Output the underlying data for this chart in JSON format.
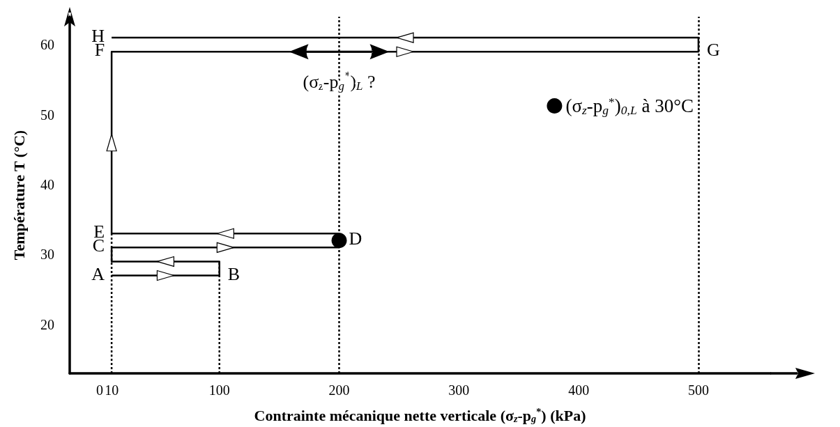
{
  "chart_data": {
    "type": "line",
    "xlabel": "Contrainte mécanique nette verticale (σ$_{z}$-p$_{g}$$^{*}$) (kPa)",
    "ylabel": "Température T (°C)",
    "xlim": [
      -25,
      560
    ],
    "xticks": [
      0,
      10,
      100,
      200,
      300,
      400,
      500
    ],
    "ylim": [
      13,
      64
    ],
    "yticks": [
      20,
      30,
      40,
      50,
      60
    ],
    "grid": false,
    "legend": "top right",
    "series": [
      {
        "color": "#000000",
        "line_style": "solid",
        "marker": "none",
        "x": [
          10,
          100,
          100,
          10,
          10,
          200,
          200,
          10,
          10,
          500,
          500,
          10
        ],
        "values": [
          27,
          27,
          29,
          29,
          31,
          31,
          33,
          33,
          59,
          59,
          61,
          61
        ]
      },
      {
        "color": "#000000",
        "line_style": "dotted",
        "marker": "none",
        "x": [
          10,
          10
        ],
        "values": [
          13,
          33
        ]
      },
      {
        "color": "#000000",
        "line_style": "dotted",
        "marker": "none",
        "x": [
          100,
          100
        ],
        "values": [
          13,
          29
        ]
      },
      {
        "type": "scatter",
        "name": "(σ$_{z}$-p$_{g}$$^{*}$)$_{0,L}$ à 30°C",
        "color": "#000000",
        "marker": "circle",
        "x": [
          200
        ],
        "values": [
          32
        ]
      }
    ],
    "ref_lines": [
      {
        "axis": "x",
        "value": 200,
        "color": "#000000",
        "line_style": "dotted"
      },
      {
        "axis": "x",
        "value": 500,
        "color": "#000000",
        "line_style": "dotted"
      }
    ],
    "annotations": [
      {
        "text": "A",
        "x": 10,
        "y": 27
      },
      {
        "text": "B",
        "x": 100,
        "y": 27
      },
      {
        "text": "C",
        "x": 10,
        "y": 31
      },
      {
        "text": "D",
        "x": 200,
        "y": 32
      },
      {
        "text": "E",
        "x": 10,
        "y": 33
      },
      {
        "text": "F",
        "x": 10,
        "y": 59
      },
      {
        "text": "G",
        "x": 500,
        "y": 59
      },
      {
        "text": "H",
        "x": 10,
        "y": 61
      },
      {
        "text": "(σ$_{z}$-p$_{g}$$^{*}$)$_{L}$ ?",
        "x": 200,
        "y": 59
      }
    ]
  }
}
